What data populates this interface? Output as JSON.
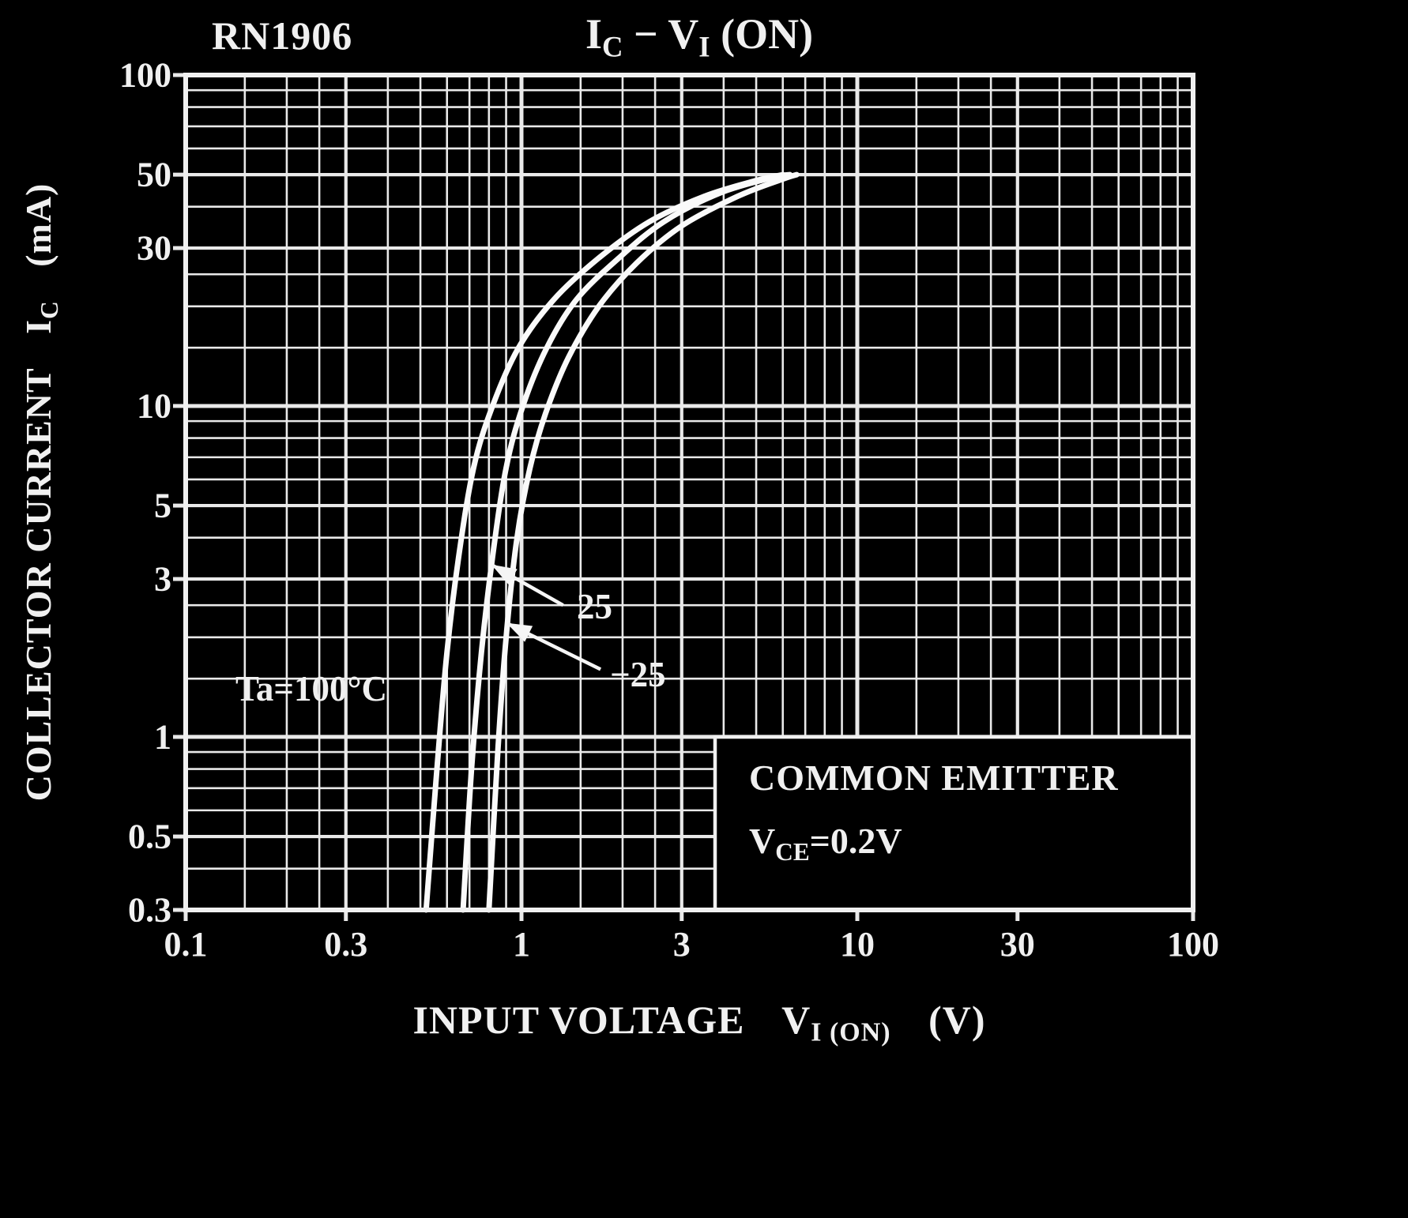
{
  "header": {
    "part_number": "RN1906",
    "title": {
      "sym1": "I",
      "sub1": "C",
      "sep": "−",
      "sym2": "V",
      "sub2": "I",
      "suffix": "(ON)"
    }
  },
  "axes": {
    "y_label": {
      "text": "COLLECTOR CURRENT",
      "sym": "I",
      "sym_sub": "C",
      "unit": "(mA)"
    },
    "x_label": {
      "text": "INPUT VOLTAGE",
      "sym": "V",
      "sym_sub": "I (ON)",
      "unit": "(V)"
    }
  },
  "condition_box": {
    "line1": "COMMON EMITTER",
    "sym": "V",
    "sym_sub": "CE",
    "value": "=0.2V"
  },
  "curve_labels": {
    "ta": "Ta=100°C",
    "plus25": "25",
    "minus25": "−25"
  },
  "chart_data": {
    "type": "line",
    "title": "IC − VI (ON)",
    "part_number": "RN1906",
    "xlabel": "INPUT VOLTAGE VI(ON) (V)",
    "ylabel": "COLLECTOR CURRENT IC (mA)",
    "x_scale": "log",
    "y_scale": "log",
    "xlim": [
      0.1,
      100
    ],
    "ylim": [
      0.3,
      100
    ],
    "x_tick_labels": [
      "0.1",
      "0.3",
      "1",
      "3",
      "10",
      "30",
      "100"
    ],
    "y_tick_labels": [
      "100",
      "50",
      "30",
      "10",
      "5",
      "3",
      "1",
      "0.5",
      "0.3"
    ],
    "grid": "log-log minor grid on",
    "legend_position": "annotations on plot",
    "conditions": {
      "configuration": "COMMON EMITTER",
      "VCE": "0.2V"
    },
    "series": [
      {
        "name": "Ta=100°C",
        "points": [
          [
            0.52,
            0.3
          ],
          [
            0.56,
            0.8
          ],
          [
            0.6,
            1.8
          ],
          [
            0.65,
            3.5
          ],
          [
            0.72,
            6.5
          ],
          [
            0.82,
            10
          ],
          [
            0.98,
            15
          ],
          [
            1.25,
            21
          ],
          [
            1.7,
            28
          ],
          [
            2.4,
            36
          ],
          [
            3.5,
            43
          ],
          [
            5.0,
            48
          ],
          [
            6.0,
            50
          ]
        ]
      },
      {
        "name": "Ta=25°C",
        "points": [
          [
            0.67,
            0.3
          ],
          [
            0.71,
            0.8
          ],
          [
            0.76,
            1.8
          ],
          [
            0.82,
            3.5
          ],
          [
            0.9,
            6.5
          ],
          [
            1.01,
            10
          ],
          [
            1.19,
            15
          ],
          [
            1.46,
            21
          ],
          [
            1.95,
            28
          ],
          [
            2.65,
            36
          ],
          [
            3.9,
            44
          ],
          [
            5.6,
            49
          ],
          [
            6.3,
            50
          ]
        ]
      },
      {
        "name": "Ta=−25°C",
        "points": [
          [
            0.8,
            0.3
          ],
          [
            0.85,
            0.9
          ],
          [
            0.9,
            2.0
          ],
          [
            0.97,
            4.0
          ],
          [
            1.06,
            6.5
          ],
          [
            1.18,
            9.5
          ],
          [
            1.38,
            14
          ],
          [
            1.7,
            20
          ],
          [
            2.2,
            27
          ],
          [
            3.0,
            35
          ],
          [
            4.4,
            43
          ],
          [
            6.0,
            48.5
          ],
          [
            6.6,
            50
          ]
        ]
      }
    ],
    "annotations": [
      {
        "label": "25",
        "arrow_from": [
          1.33,
          2.5
        ],
        "arrow_to": [
          0.82,
          3.3
        ]
      },
      {
        "label": "−25",
        "arrow_from": [
          1.72,
          1.6
        ],
        "arrow_to": [
          0.91,
          2.2
        ]
      }
    ]
  }
}
